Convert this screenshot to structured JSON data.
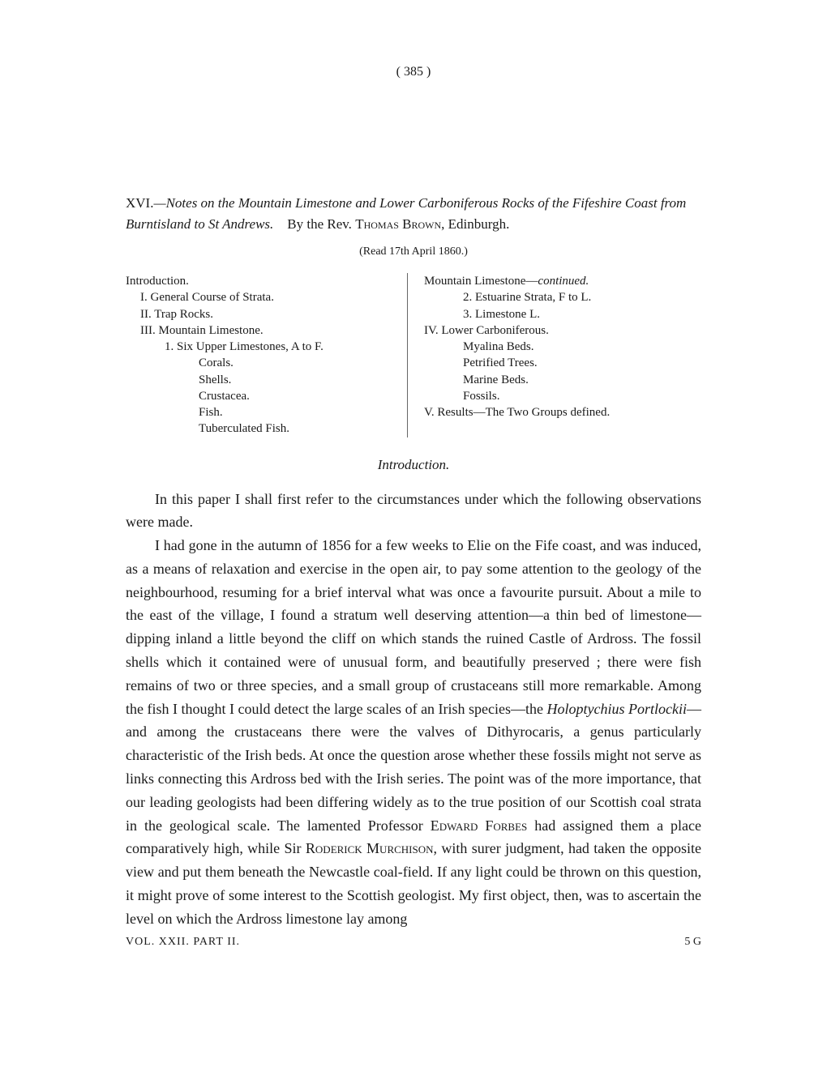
{
  "page_number": "(   385   )",
  "title": {
    "numeral": "XVI.",
    "main_italic": "—Notes on the Mountain Limestone and Lower Carboniferous Rocks of the Fifeshire Coast from Burntisland to St Andrews.",
    "by_text": "By the Rev.",
    "author_surname": "Thomas Brown",
    "author_suffix": ", Edinburgh."
  },
  "read_date": "(Read 17th April 1860.)",
  "toc_left": [
    {
      "level": 0,
      "text": "Introduction."
    },
    {
      "level": 1,
      "text": "I. General Course of Strata."
    },
    {
      "level": 1,
      "text": "II. Trap Rocks."
    },
    {
      "level": 1,
      "text": "III. Mountain Limestone."
    },
    {
      "level": 2,
      "text": "1. Six Upper Limestones, A to F."
    },
    {
      "level": 3,
      "text": "Corals."
    },
    {
      "level": 3,
      "text": "Shells."
    },
    {
      "level": 3,
      "text": "Crustacea."
    },
    {
      "level": 3,
      "text": "Fish."
    },
    {
      "level": 3,
      "text": "Tuberculated Fish."
    }
  ],
  "toc_right": [
    {
      "level": 0,
      "text": "Mountain Limestone—",
      "italic_suffix": "continued."
    },
    {
      "level": 2,
      "text": "2. Estuarine Strata, F to L."
    },
    {
      "level": 2,
      "text": "3. Limestone L."
    },
    {
      "level": 0,
      "text": "IV. Lower Carboniferous."
    },
    {
      "level": 2,
      "text": "Myalina Beds."
    },
    {
      "level": 2,
      "text": "Petrified Trees."
    },
    {
      "level": 2,
      "text": "Marine Beds."
    },
    {
      "level": 2,
      "text": "Fossils."
    },
    {
      "level": 0,
      "text": "V. Results—The Two Groups defined."
    }
  ],
  "section_heading": "Introduction.",
  "paragraphs": {
    "p1": "In this paper I shall first refer to the circumstances under which the following observations were made.",
    "p2_a": "I had gone in the autumn of 1856 for a few weeks to Elie on the Fife coast, and was induced, as a means of relaxation and exercise in the open air, to pay some attention to the geology of the neighbourhood, resuming for a brief interval what was once a favourite pursuit. About a mile to the east of the village, I found a stratum well deserving attention—a thin bed of limestone—dipping inland a little beyond the cliff on which stands the ruined Castle of Ardross. The fossil shells which it contained were of unusual form, and beautifully preserved ; there were fish remains of two or three species, and a small group of crustaceans still more remarkable. Among the fish I thought I could detect the large scales of an Irish species—the ",
    "p2_species": "Holoptychius Portlockii",
    "p2_b": "—and among the crustaceans there were the valves of Dithyrocaris, a genus particularly characteristic of the Irish beds. At once the question arose whether these fossils might not serve as links connecting this Ardross bed with the Irish series. The point was of the more importance, that our leading geologists had been differing widely as to the true position of our Scottish coal strata in the geological scale. The lamented Professor ",
    "p2_name1": "Edward Forbes",
    "p2_c": " had assigned them a place comparatively high, while Sir ",
    "p2_name2": "Roderick Murchison",
    "p2_d": ", with surer judgment, had taken the opposite view and put them beneath the Newcastle coal-field. If any light could be thrown on this question, it might prove of some interest to the Scottish geologist. My first object, then, was to ascertain the level on which the Ardross limestone lay among"
  },
  "footer": {
    "left": "VOL. XXII. PART II.",
    "right": "5 G"
  }
}
